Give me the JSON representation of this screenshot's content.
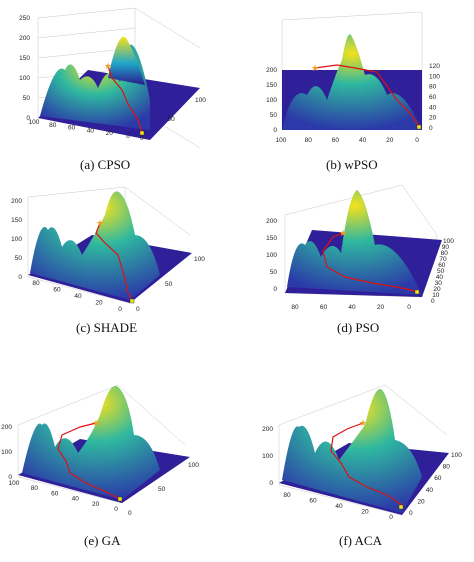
{
  "figure": {
    "panels": [
      {
        "id": "a",
        "caption": "(a) CPSO",
        "z_ticks": [
          "0",
          "50",
          "100",
          "150",
          "200",
          "250"
        ],
        "x_ticks": [
          "100",
          "80",
          "60",
          "40",
          "20",
          "0"
        ],
        "y_ticks": [
          "0",
          "50",
          "100"
        ]
      },
      {
        "id": "b",
        "caption": "(b) wPSO",
        "z_ticks": [
          "0",
          "50",
          "100",
          "150",
          "200"
        ],
        "x_ticks": [
          "100",
          "80",
          "60",
          "40",
          "20",
          "0"
        ],
        "y_ticks": [
          "0",
          "20",
          "40",
          "60",
          "80",
          "100",
          "120"
        ]
      },
      {
        "id": "c",
        "caption": "(c) SHADE",
        "z_ticks": [
          "0",
          "50",
          "100",
          "150",
          "200"
        ],
        "x_ticks": [
          "80",
          "60",
          "40",
          "20",
          "0"
        ],
        "y_ticks": [
          "0",
          "50",
          "100"
        ]
      },
      {
        "id": "d",
        "caption": "(d) PSO",
        "z_ticks": [
          "0",
          "50",
          "100",
          "150",
          "200"
        ],
        "x_ticks": [
          "80",
          "60",
          "40",
          "20",
          "0"
        ],
        "y_ticks": [
          "0",
          "10",
          "20",
          "30",
          "40",
          "50",
          "60",
          "70",
          "80",
          "90",
          "100"
        ]
      },
      {
        "id": "e",
        "caption": "(e) GA",
        "z_ticks": [
          "0",
          "100",
          "200"
        ],
        "x_ticks": [
          "100",
          "80",
          "60",
          "40",
          "20",
          "0"
        ],
        "y_ticks": [
          "0",
          "50",
          "100"
        ]
      },
      {
        "id": "f",
        "caption": "(f) ACA",
        "z_ticks": [
          "0",
          "100",
          "200"
        ],
        "x_ticks": [
          "80",
          "60",
          "40",
          "20",
          "0"
        ],
        "y_ticks": [
          "0",
          "20",
          "40",
          "60",
          "80",
          "100"
        ]
      }
    ],
    "colors": {
      "terrain_low": "#2b1a8c",
      "terrain_mid": "#1fa5c9",
      "terrain_high": "#f5e21c",
      "path": "#e01010",
      "start_marker": "#f0a020",
      "end_marker": "#f5e21c",
      "grid": "#c8c8c8"
    }
  }
}
